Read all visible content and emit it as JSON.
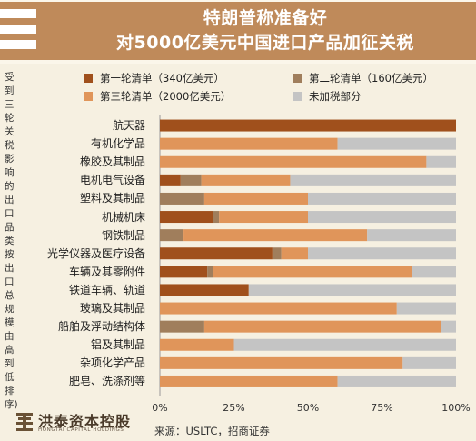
{
  "header": {
    "title_line1": "特朗普称准备好",
    "title_line2": "对5000亿美元中国进口产品加征关税"
  },
  "side_note": "受到三轮关税影响的出口品类按出口总规模由高到低排序)",
  "footer": {
    "logo_name": "洪泰资本控股",
    "logo_sub": "HONGTAI CAPITAL HOLDINGS",
    "source": "来源：USLTC，招商证券"
  },
  "colors": {
    "round1": "#a0501c",
    "round2": "#a07e5c",
    "round3": "#e0955a",
    "untaxed": "#c4c4c4",
    "banner": "#bf8a5a",
    "background": "#f6f0e1"
  },
  "chart_data": {
    "type": "bar",
    "orientation": "horizontal",
    "stacked": true,
    "categories": [
      "航天器",
      "有机化学品",
      "橡胶及其制品",
      "电机电气设备",
      "塑料及其制品",
      "机械机床",
      "钢铁制品",
      "光学仪器及医疗设备",
      "车辆及其零附件",
      "铁道车辆、轨道",
      "玻璃及其制品",
      "船舶及浮动结构体",
      "铝及其制品",
      "杂项化学产品",
      "肥皂、洗涤剂等"
    ],
    "series": [
      {
        "name": "第一轮清单（340亿美元）",
        "color_key": "round1",
        "values": [
          100,
          0,
          0,
          7,
          0,
          18,
          0,
          38,
          16,
          30,
          0,
          0,
          0,
          0,
          0
        ]
      },
      {
        "name": "第二轮清单（160亿美元）",
        "color_key": "round2",
        "values": [
          0,
          0,
          0,
          7,
          15,
          2,
          8,
          3,
          2,
          0,
          0,
          15,
          0,
          0,
          0
        ]
      },
      {
        "name": "第三轮清单（2000亿美元）",
        "color_key": "round3",
        "values": [
          0,
          60,
          90,
          30,
          35,
          30,
          62,
          9,
          67,
          0,
          80,
          80,
          25,
          82,
          60
        ]
      },
      {
        "name": "未加税部分",
        "color_key": "untaxed",
        "values": [
          0,
          40,
          10,
          56,
          50,
          50,
          30,
          50,
          15,
          70,
          20,
          5,
          75,
          18,
          40
        ]
      }
    ],
    "xlim": [
      0,
      100
    ],
    "x_ticks": [
      "0%",
      "25%",
      "50%",
      "75%",
      "100%"
    ],
    "legend_position": "top",
    "grid": false
  }
}
